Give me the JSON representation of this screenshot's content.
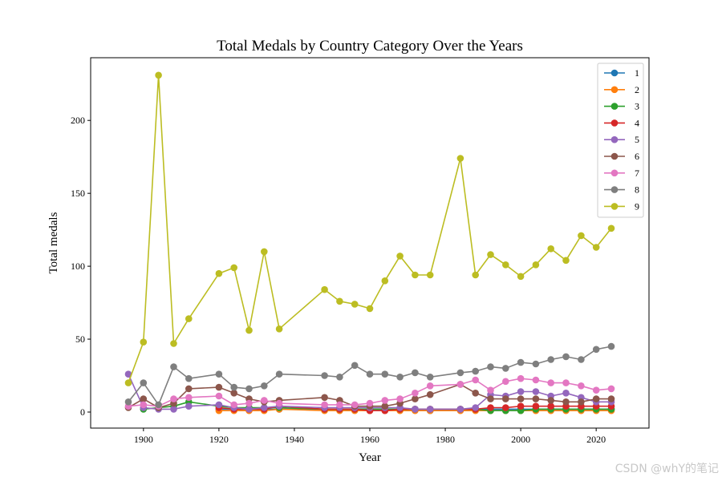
{
  "chart_data": {
    "type": "line",
    "title": "Total Medals by Country Category Over the Years",
    "xlabel": "Year",
    "ylabel": "Total medals",
    "xlim": [
      1886,
      2034
    ],
    "ylim": [
      -11,
      243
    ],
    "xticks": [
      1900,
      1920,
      1940,
      1960,
      1980,
      2000,
      2020
    ],
    "yticks": [
      0,
      50,
      100,
      150,
      200
    ],
    "legend_position": "top-right",
    "series": [
      {
        "name": "1",
        "color": "#1f77b4",
        "x": [
          1920,
          1924,
          1928,
          1932,
          1936,
          1948,
          1952,
          1956,
          1960,
          1964,
          1968,
          1972,
          1976,
          1984,
          1988,
          1992,
          1996,
          2000,
          2004,
          2008,
          2012,
          2016,
          2020,
          2024
        ],
        "y": [
          2,
          2,
          2,
          2,
          2,
          2,
          2,
          2,
          2,
          2,
          2,
          2,
          1,
          2,
          2,
          2,
          2,
          2,
          2,
          2,
          2,
          2,
          2,
          2
        ]
      },
      {
        "name": "2",
        "color": "#ff7f0e",
        "x": [
          1920,
          1924,
          1928,
          1932,
          1936,
          1948,
          1952,
          1956,
          1960,
          1964,
          1968,
          1972,
          1976,
          1984,
          1988,
          1992,
          1996,
          2000,
          2004,
          2008,
          2012,
          2016,
          2020,
          2024
        ],
        "y": [
          1,
          1,
          1,
          1,
          2,
          1,
          1,
          1,
          1,
          1,
          1,
          1,
          1,
          1,
          1,
          1,
          1,
          1,
          1,
          1,
          1,
          1,
          1,
          1
        ]
      },
      {
        "name": "3",
        "color": "#2ca02c",
        "x": [
          1900,
          1904,
          1908,
          1912,
          1920,
          1924,
          1928,
          1932,
          1936,
          1948,
          1952,
          1956,
          1960,
          1964,
          1968,
          1972,
          1976,
          1984,
          1988,
          1992,
          1996,
          2000,
          2004,
          2008,
          2012,
          2016,
          2020,
          2024
        ],
        "y": [
          2,
          3,
          4,
          7,
          4,
          3,
          3,
          3,
          3,
          2,
          2,
          2,
          2,
          2,
          2,
          2,
          2,
          2,
          2,
          1,
          1,
          1,
          2,
          2,
          2,
          2,
          2,
          2
        ]
      },
      {
        "name": "4",
        "color": "#d62728",
        "x": [
          1920,
          1924,
          1928,
          1932,
          1936,
          1948,
          1952,
          1956,
          1960,
          1964,
          1968,
          1972,
          1976,
          1984,
          1988,
          1992,
          1996,
          2000,
          2004,
          2008,
          2012,
          2016,
          2020,
          2024
        ],
        "y": [
          3,
          2,
          2,
          2,
          4,
          2,
          2,
          2,
          1,
          1,
          2,
          2,
          2,
          2,
          2,
          3,
          3,
          4,
          4,
          4,
          4,
          4,
          4,
          4
        ]
      },
      {
        "name": "5",
        "color": "#9467bd",
        "x": [
          1896,
          1900,
          1904,
          1908,
          1912,
          1920,
          1924,
          1928,
          1932,
          1936,
          1948,
          1952,
          1956,
          1960,
          1964,
          1968,
          1972,
          1976,
          1984,
          1988,
          1992,
          1996,
          2000,
          2004,
          2008,
          2012,
          2016,
          2020,
          2024
        ],
        "y": [
          26,
          3,
          2,
          2,
          4,
          5,
          3,
          2,
          3,
          4,
          3,
          3,
          3,
          3,
          3,
          3,
          2,
          2,
          2,
          3,
          12,
          11,
          14,
          14,
          11,
          13,
          10,
          7,
          7
        ]
      },
      {
        "name": "6",
        "color": "#8c564b",
        "x": [
          1896,
          1900,
          1904,
          1908,
          1912,
          1920,
          1924,
          1928,
          1932,
          1936,
          1948,
          1952,
          1956,
          1960,
          1964,
          1968,
          1972,
          1976,
          1984,
          1988,
          1992,
          1996,
          2000,
          2004,
          2008,
          2012,
          2016,
          2020,
          2024
        ],
        "y": [
          3,
          9,
          3,
          6,
          16,
          17,
          13,
          9,
          7,
          8,
          10,
          8,
          4,
          4,
          4,
          6,
          9,
          12,
          19,
          13,
          9,
          9,
          9,
          9,
          8,
          7,
          7,
          9,
          9
        ]
      },
      {
        "name": "7",
        "color": "#e377c2",
        "x": [
          1896,
          1900,
          1904,
          1908,
          1912,
          1920,
          1924,
          1928,
          1932,
          1936,
          1948,
          1952,
          1956,
          1960,
          1964,
          1968,
          1972,
          1976,
          1984,
          1988,
          1992,
          1996,
          2000,
          2004,
          2008,
          2012,
          2016,
          2020,
          2024
        ],
        "y": [
          4,
          5,
          4,
          9,
          10,
          11,
          5,
          6,
          8,
          6,
          5,
          5,
          5,
          6,
          8,
          9,
          13,
          18,
          19,
          22,
          15,
          21,
          23,
          22,
          20,
          20,
          18,
          15,
          16
        ]
      },
      {
        "name": "8",
        "color": "#7f7f7f",
        "x": [
          1896,
          1900,
          1904,
          1908,
          1912,
          1920,
          1924,
          1928,
          1932,
          1936,
          1948,
          1952,
          1956,
          1960,
          1964,
          1968,
          1972,
          1976,
          1984,
          1988,
          1992,
          1996,
          2000,
          2004,
          2008,
          2012,
          2016,
          2020,
          2024
        ],
        "y": [
          7,
          20,
          5,
          31,
          23,
          26,
          17,
          16,
          18,
          26,
          25,
          24,
          32,
          26,
          26,
          24,
          27,
          24,
          27,
          28,
          31,
          30,
          34,
          33,
          36,
          38,
          36,
          43,
          45
        ]
      },
      {
        "name": "9",
        "color": "#bcbd22",
        "x": [
          1896,
          1900,
          1904,
          1908,
          1912,
          1920,
          1924,
          1928,
          1932,
          1936,
          1948,
          1952,
          1956,
          1960,
          1964,
          1968,
          1972,
          1976,
          1984,
          1988,
          1992,
          1996,
          2000,
          2004,
          2008,
          2012,
          2016,
          2020,
          2024
        ],
        "y": [
          20,
          48,
          231,
          47,
          64,
          95,
          99,
          56,
          110,
          57,
          84,
          76,
          74,
          71,
          90,
          107,
          94,
          94,
          174,
          94,
          108,
          101,
          93,
          101,
          112,
          104,
          121,
          113,
          126
        ]
      }
    ]
  },
  "watermark": "CSDN @whY的笔记"
}
